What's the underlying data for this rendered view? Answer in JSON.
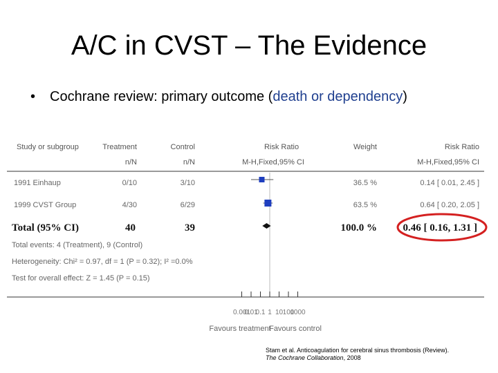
{
  "slide": {
    "title": "A/C in CVST – The Evidence",
    "bullet_marker": "•",
    "bullet_lead": "Cochrane review",
    "bullet_mid": ": primary outcome (",
    "bullet_blue": "death or dependency",
    "bullet_end": ")"
  },
  "citation": {
    "line1": "Stam et al. Anticoagulation for cerebral sinus thrombosis (Review).",
    "line2_italic": "The Cochrane Collaboration",
    "line2_rest": ", 2008"
  },
  "colors": {
    "highlight_ellipse": "#d42020",
    "marker": "#1f3fbf",
    "pooled": "#111111"
  },
  "chart_data": {
    "type": "forest",
    "headers": {
      "study": "Study or subgroup",
      "treatment": "Treatment",
      "control": "Control",
      "risk_ratio": "Risk Ratio",
      "weight": "Weight",
      "risk_ratio_right": "Risk Ratio",
      "treatment_sub": "n/N",
      "control_sub": "n/N",
      "method": "M-H,Fixed,95% CI",
      "method_right": "M-H,Fixed,95% CI"
    },
    "studies": [
      {
        "name": "1991 Einhaup",
        "treatment": "0/10",
        "control": "3/10",
        "weight": "36.5 %",
        "ci_text": "0.14 [ 0.01, 2.45 ]",
        "rr": 0.14,
        "lo": 0.01,
        "hi": 2.45
      },
      {
        "name": "1999 CVST Group",
        "treatment": "4/30",
        "control": "6/29",
        "weight": "63.5 %",
        "ci_text": "0.64 [ 0.20, 2.05 ]",
        "rr": 0.64,
        "lo": 0.2,
        "hi": 2.05
      }
    ],
    "total": {
      "name": "Total (95% CI)",
      "treatment": "40",
      "control": "39",
      "weight": "100.0 %",
      "ci_text": "0.46 [ 0.16, 1.31 ]",
      "rr": 0.46,
      "lo": 0.16,
      "hi": 1.31
    },
    "notes": [
      "Total events: 4 (Treatment), 9 (Control)",
      "Heterogeneity: Chi² = 0.97, df = 1 (P = 0.32); I² =0.0%",
      "Test for overall effect: Z = 1.45 (P = 0.15)"
    ],
    "axis": {
      "scale": "log",
      "range": [
        0.001,
        1000
      ],
      "ticks": [
        0.001,
        0.01,
        0.1,
        1,
        10,
        100,
        1000
      ],
      "tick_labels": [
        "0.001",
        "0.01",
        "0.1",
        "1",
        "10",
        "100",
        "1000"
      ]
    },
    "favours_left": "Favours treatment",
    "favours_right": "Favours control"
  }
}
